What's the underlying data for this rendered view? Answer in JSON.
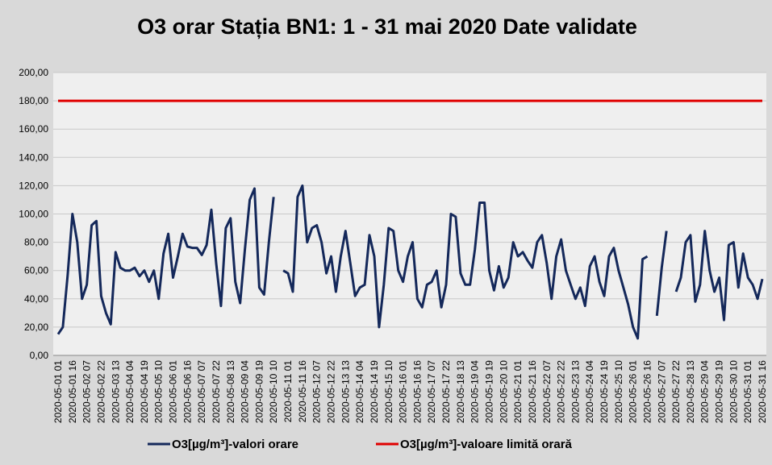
{
  "chart_data": {
    "type": "line",
    "title": "O3 orar Stația BN1: 1 - 31 mai 2020 Date validate",
    "categories": [
      "2020-05-01 01",
      null,
      null,
      "2020-05-01 16",
      null,
      null,
      "2020-05-02 07",
      null,
      null,
      "2020-05-02 22",
      null,
      null,
      "2020-05-03 13",
      null,
      null,
      "2020-05-04 04",
      null,
      null,
      "2020-05-04 19",
      null,
      null,
      "2020-05-05 10",
      null,
      null,
      "2020-05-06 01",
      null,
      null,
      "2020-05-06 16",
      null,
      null,
      "2020-05-07 07",
      null,
      null,
      "2020-05-07 22",
      null,
      null,
      "2020-05-08 13",
      null,
      null,
      "2020-05-09 04",
      null,
      null,
      "2020-05-09 19",
      null,
      null,
      "2020-05-10 10",
      null,
      null,
      "2020-05-11 01",
      null,
      null,
      "2020-05-11 16",
      null,
      null,
      "2020-05-12 07",
      null,
      null,
      "2020-05-12 22",
      null,
      null,
      "2020-05-13 13",
      null,
      null,
      "2020-05-14 04",
      null,
      null,
      "2020-05-14 19",
      null,
      null,
      "2020-05-15 10",
      null,
      null,
      "2020-05-16 01",
      null,
      null,
      "2020-05-16 16",
      null,
      null,
      "2020-05-17 07",
      null,
      null,
      "2020-05-17 22",
      null,
      null,
      "2020-05-18 13",
      null,
      null,
      "2020-05-19 04",
      null,
      null,
      "2020-05-19 19",
      null,
      null,
      "2020-05-20 10",
      null,
      null,
      "2020-05-21 01",
      null,
      null,
      "2020-05-21 16",
      null,
      null,
      "2020-05-22 07",
      null,
      null,
      "2020-05-22 22",
      null,
      null,
      "2020-05-23 13",
      null,
      null,
      "2020-05-24 04",
      null,
      null,
      "2020-05-24 19",
      null,
      null,
      "2020-05-25 10",
      null,
      null,
      "2020-05-26 01",
      null,
      null,
      "2020-05-26 16",
      null,
      null,
      "2020-05-27 07",
      null,
      null,
      "2020-05-27 22",
      null,
      null,
      "2020-05-28 13",
      null,
      null,
      "2020-05-29 04",
      null,
      null,
      "2020-05-29 19",
      null,
      null,
      "2020-05-30 10",
      null,
      null,
      "2020-05-31 01",
      null,
      null,
      "2020-05-31 16"
    ],
    "series": [
      {
        "name": "O3[µg/m³]-valori orare",
        "color": "#14285a",
        "values": [
          15,
          20,
          57,
          100,
          80,
          40,
          50,
          92,
          95,
          42,
          30,
          22,
          73,
          62,
          60,
          60,
          62,
          56,
          60,
          52,
          60,
          40,
          72,
          86,
          55,
          70,
          86,
          77,
          76,
          76,
          71,
          78,
          103,
          65,
          35,
          90,
          97,
          52,
          37,
          75,
          110,
          118,
          48,
          43,
          80,
          112,
          null,
          60,
          58,
          45,
          112,
          120,
          80,
          90,
          92,
          80,
          58,
          70,
          45,
          70,
          88,
          65,
          42,
          48,
          50,
          85,
          70,
          20,
          50,
          90,
          88,
          60,
          52,
          70,
          80,
          40,
          34,
          50,
          52,
          60,
          34,
          50,
          100,
          98,
          58,
          50,
          50,
          75,
          108,
          108,
          60,
          46,
          63,
          48,
          55,
          80,
          70,
          73,
          67,
          62,
          80,
          85,
          65,
          40,
          70,
          82,
          60,
          50,
          40,
          48,
          35,
          63,
          70,
          52,
          42,
          70,
          76,
          60,
          48,
          36,
          20,
          12,
          68,
          70,
          null,
          28,
          62,
          88,
          null,
          45,
          55,
          80,
          85,
          38,
          50,
          88,
          60,
          45,
          55,
          25,
          78,
          80,
          48,
          72,
          55,
          50,
          40,
          54
        ]
      },
      {
        "name": "O3[µg/m³]-valoare limită orară",
        "color": "#e00000",
        "values": [
          180,
          180,
          180,
          180,
          180,
          180,
          180,
          180,
          180,
          180,
          180,
          180,
          180,
          180,
          180,
          180,
          180,
          180,
          180,
          180,
          180,
          180,
          180,
          180,
          180,
          180,
          180,
          180,
          180,
          180,
          180,
          180,
          180,
          180,
          180,
          180,
          180,
          180,
          180,
          180,
          180,
          180,
          180,
          180,
          180,
          180,
          180,
          180,
          180,
          180,
          180,
          180,
          180,
          180,
          180,
          180,
          180,
          180,
          180,
          180,
          180,
          180,
          180,
          180,
          180,
          180,
          180,
          180,
          180,
          180,
          180,
          180,
          180,
          180,
          180,
          180,
          180,
          180,
          180,
          180,
          180,
          180,
          180,
          180,
          180,
          180,
          180,
          180,
          180,
          180,
          180,
          180,
          180,
          180,
          180,
          180,
          180,
          180,
          180,
          180,
          180,
          180,
          180,
          180,
          180,
          180,
          180,
          180,
          180,
          180,
          180,
          180,
          180,
          180,
          180,
          180,
          180,
          180,
          180,
          180,
          180,
          180,
          180,
          180,
          180,
          180,
          180,
          180,
          180,
          180,
          180,
          180,
          180,
          180,
          180,
          180,
          180,
          180,
          180,
          180,
          180,
          180,
          180,
          180,
          180,
          180,
          180,
          180
        ]
      }
    ],
    "ylim": [
      0,
      200
    ],
    "yticks": [
      {
        "value": 0,
        "label": "0,00"
      },
      {
        "value": 20,
        "label": "20,00"
      },
      {
        "value": 40,
        "label": "40,00"
      },
      {
        "value": 60,
        "label": "60,00"
      },
      {
        "value": 80,
        "label": "80,00"
      },
      {
        "value": 100,
        "label": "100,00"
      },
      {
        "value": 120,
        "label": "120,00"
      },
      {
        "value": 140,
        "label": "140,00"
      },
      {
        "value": 160,
        "label": "160,00"
      },
      {
        "value": 180,
        "label": "180,00"
      },
      {
        "value": 200,
        "label": "200,00"
      }
    ],
    "grid": true,
    "legend": "bottom"
  }
}
